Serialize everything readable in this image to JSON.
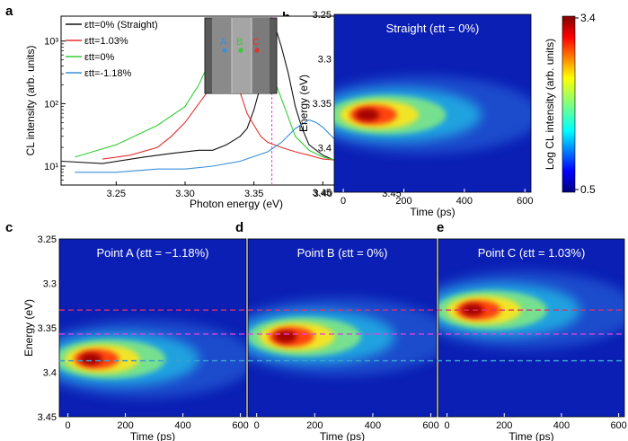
{
  "panel_labels": [
    "a",
    "b",
    "c",
    "d",
    "e"
  ],
  "colors": {
    "straight": "#111111",
    "tensile": "#e53030",
    "zero": "#33cc33",
    "compressive": "#3a8fd9",
    "marker": "#e040e0",
    "dash_top": "#e03070",
    "dash_mid": "#e040e0",
    "dash_bot": "#3aa0d0"
  },
  "inset": {
    "labels": [
      {
        "text": "A",
        "color": "#3a8fd9"
      },
      {
        "text": "B",
        "color": "#33cc33"
      },
      {
        "text": "C",
        "color": "#e53030"
      }
    ]
  },
  "colorbar": {
    "label": "Log CL intensity (arb. units)",
    "ticks": [
      "3.4",
      "0.5"
    ],
    "min": 0.5,
    "max": 3.4
  },
  "chart_data": [
    {
      "type": "line",
      "panel": "a",
      "xlabel": "Photon energy (eV)",
      "ylabel": "CL intensity (arb. units)",
      "xlim": [
        3.21,
        3.465
      ],
      "ylim": [
        5,
        2500
      ],
      "yscale": "log",
      "x_ticks": [
        "3.25",
        "3.30",
        "3.35",
        "3.40",
        "3.45"
      ],
      "y_ticks": [
        "10¹",
        "10²",
        "10³"
      ],
      "marker_x": 3.363,
      "legend_location": "upper-left",
      "legend": [
        "εtt=0% (Straight)",
        "εtt=1.03%",
        "εtt=0%",
        "εtt=-1.18%"
      ],
      "series": [
        {
          "name": "εtt=0% (Straight)",
          "color": "straight",
          "x": [
            3.21,
            3.24,
            3.27,
            3.29,
            3.31,
            3.32,
            3.33,
            3.34,
            3.345,
            3.35,
            3.355,
            3.36,
            3.365,
            3.37,
            3.375,
            3.38,
            3.385,
            3.39,
            3.4,
            3.41,
            3.42,
            3.43,
            3.44,
            3.45,
            3.465
          ],
          "y": [
            12,
            11,
            14,
            16,
            18,
            18,
            22,
            30,
            40,
            80,
            200,
            700,
            1800,
            800,
            300,
            90,
            40,
            22,
            15,
            12,
            11,
            10,
            10,
            9,
            9
          ]
        },
        {
          "name": "εtt=1.03%",
          "color": "tensile",
          "x": [
            3.24,
            3.26,
            3.28,
            3.29,
            3.3,
            3.31,
            3.32,
            3.325,
            3.33,
            3.335,
            3.34,
            3.345,
            3.35,
            3.355,
            3.36,
            3.37,
            3.38,
            3.39,
            3.4,
            3.42
          ],
          "y": [
            13,
            15,
            20,
            30,
            50,
            100,
            200,
            300,
            330,
            250,
            150,
            70,
            45,
            30,
            24,
            20,
            17,
            15,
            13,
            12
          ]
        },
        {
          "name": "εtt=0%",
          "color": "zero",
          "x": [
            3.22,
            3.25,
            3.28,
            3.3,
            3.31,
            3.32,
            3.33,
            3.34,
            3.35,
            3.36,
            3.37,
            3.38,
            3.39,
            3.4,
            3.42,
            3.44
          ],
          "y": [
            14,
            22,
            45,
            90,
            200,
            600,
            700,
            520,
            620,
            450,
            120,
            30,
            18,
            14,
            11,
            10
          ]
        },
        {
          "name": "εtt=-1.18%",
          "color": "compressive",
          "x": [
            3.22,
            3.25,
            3.28,
            3.3,
            3.32,
            3.34,
            3.36,
            3.37,
            3.38,
            3.39,
            3.395,
            3.4,
            3.41,
            3.42,
            3.43,
            3.44,
            3.45
          ],
          "y": [
            8,
            8,
            9,
            9,
            10,
            12,
            17,
            24,
            40,
            55,
            50,
            42,
            25,
            16,
            12,
            10,
            9
          ]
        }
      ]
    },
    {
      "type": "heatmap",
      "panel": "b",
      "title": "Straight (εtt = 0%)",
      "xlabel": "Time (ps)",
      "ylabel": "Energy (eV)",
      "xlim": [
        -30,
        620
      ],
      "ylim": [
        3.25,
        3.45
      ],
      "x_ticks": [
        "0",
        "200",
        "400",
        "600"
      ],
      "y_ticks": [
        "3.25",
        "3.3",
        "3.35",
        "3.4",
        "3.45"
      ],
      "peak_energy": 3.363,
      "peak_time": 80
    },
    {
      "type": "heatmap",
      "panel": "c",
      "title": "Point A (εtt = −1.18%)",
      "xlabel": "Time (ps)",
      "ylabel": "Energy (eV)",
      "xlim": [
        -30,
        620
      ],
      "ylim": [
        3.25,
        3.45
      ],
      "x_ticks": [
        "0",
        "200",
        "400",
        "600"
      ],
      "y_ticks": [
        "3.25",
        "3.3",
        "3.35",
        "3.4",
        "3.45"
      ],
      "peak_energy": 3.385,
      "peak_time": 80
    },
    {
      "type": "heatmap",
      "panel": "d",
      "title": "Point B (εtt = 0%)",
      "xlabel": "Time (ps)",
      "ylabel": "",
      "xlim": [
        -30,
        620
      ],
      "ylim": [
        3.25,
        3.45
      ],
      "x_ticks": [
        "0",
        "200",
        "400",
        "600"
      ],
      "y_ticks": [],
      "peak_energy": 3.36,
      "peak_time": 100
    },
    {
      "type": "heatmap",
      "panel": "e",
      "title": "Point C (εtt = 1.03%)",
      "xlabel": "Time (ps)",
      "ylabel": "",
      "xlim": [
        -30,
        620
      ],
      "ylim": [
        3.25,
        3.45
      ],
      "x_ticks": [
        "0",
        "200",
        "400",
        "600"
      ],
      "y_ticks": [],
      "peak_energy": 3.33,
      "peak_time": 90
    }
  ],
  "dashed_lines_energy": [
    3.33,
    3.357,
    3.387
  ]
}
